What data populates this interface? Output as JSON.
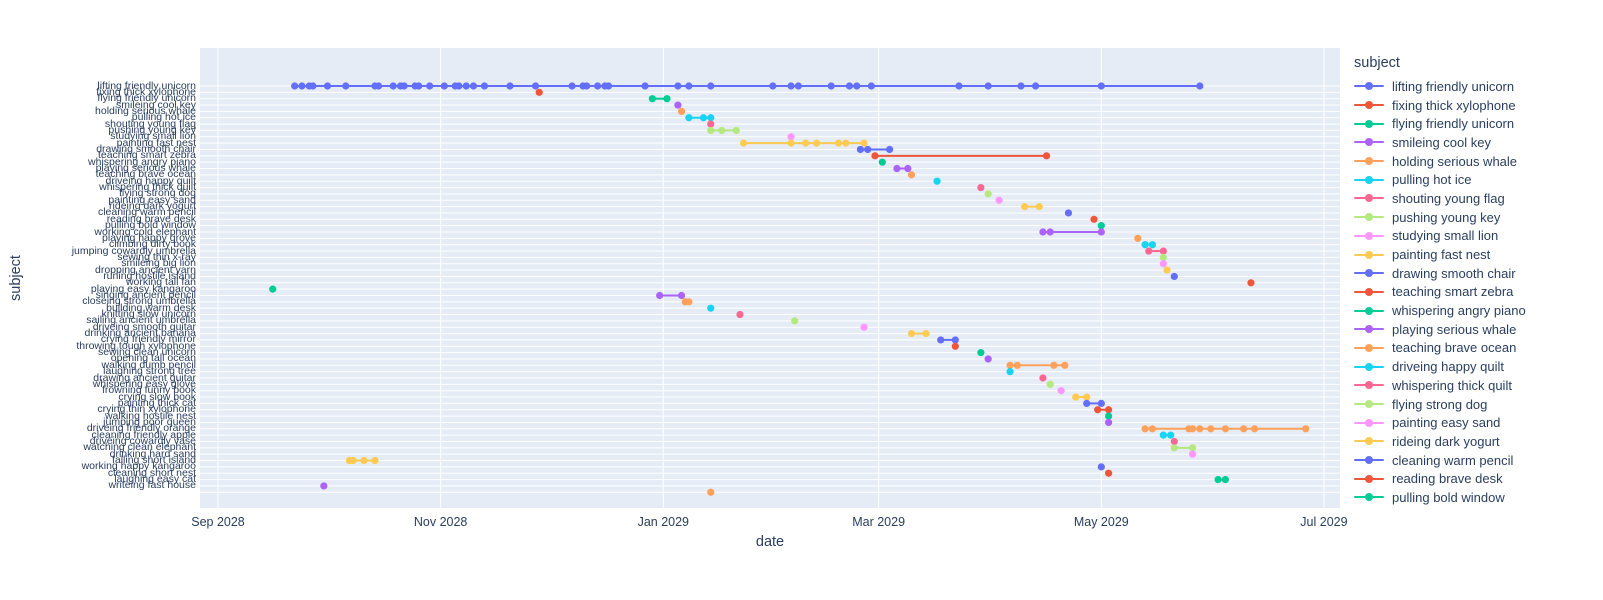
{
  "chart_data": {
    "type": "scatter",
    "mode": "lines+markers",
    "title": "",
    "xlabel": "date",
    "ylabel": "subject",
    "legend_title": "subject",
    "grid": true,
    "legend_position": "right",
    "legend_visible_count": 23,
    "plot_bg": "#E5ECF6",
    "grid_color": "#FFFFFF",
    "text_color": "#2A3F5F",
    "x_ticks": [
      "Sep 2028",
      "Nov 2028",
      "Jan 2029",
      "Mar 2029",
      "May 2029",
      "Jul 2029"
    ],
    "x_tick_dates": [
      "2028-09-01",
      "2028-11-01",
      "2029-01-01",
      "2029-03-01",
      "2029-05-01",
      "2029-07-01"
    ],
    "x_range": [
      "2028-08-27",
      "2029-07-05"
    ],
    "palette": [
      "#636EFA",
      "#EF553B",
      "#00CC96",
      "#AB63FA",
      "#FFA15A",
      "#19D3F3",
      "#FF6692",
      "#B6E880",
      "#FF97FF",
      "#FECB52"
    ],
    "series": [
      {
        "name": "lifting friendly unicorn",
        "color": "#636EFA",
        "dates": [
          "2028-09-22",
          "2028-09-24",
          "2028-09-26",
          "2028-09-27",
          "2028-10-01",
          "2028-10-06",
          "2028-10-14",
          "2028-10-15",
          "2028-10-19",
          "2028-10-21",
          "2028-10-22",
          "2028-10-25",
          "2028-10-26",
          "2028-10-29",
          "2028-11-02",
          "2028-11-05",
          "2028-11-06",
          "2028-11-08",
          "2028-11-10",
          "2028-11-13",
          "2028-11-20",
          "2028-11-27",
          "2028-12-07",
          "2028-12-10",
          "2028-12-11",
          "2028-12-14",
          "2028-12-16",
          "2028-12-17",
          "2028-12-27",
          "2029-01-05",
          "2029-01-08",
          "2029-01-14",
          "2029-01-31",
          "2029-02-05",
          "2029-02-07",
          "2029-02-16",
          "2029-02-21",
          "2029-02-23",
          "2029-02-27",
          "2029-03-23",
          "2029-03-31",
          "2029-04-09",
          "2029-04-13",
          "2029-05-01",
          "2029-05-28"
        ]
      },
      {
        "name": "fixing thick xylophone",
        "color": "#EF553B",
        "dates": [
          "2028-11-28"
        ]
      },
      {
        "name": "flying friendly unicorn",
        "color": "#00CC96",
        "dates": [
          "2028-12-29",
          "2029-01-02"
        ]
      },
      {
        "name": "smileing cool key",
        "color": "#AB63FA",
        "dates": [
          "2029-01-05"
        ]
      },
      {
        "name": "holding serious whale",
        "color": "#FFA15A",
        "dates": [
          "2029-01-06"
        ]
      },
      {
        "name": "pulling hot ice",
        "color": "#19D3F3",
        "dates": [
          "2029-01-08",
          "2029-01-12",
          "2029-01-14"
        ]
      },
      {
        "name": "shouting young flag",
        "color": "#FF6692",
        "dates": [
          "2029-01-14"
        ]
      },
      {
        "name": "pushing young key",
        "color": "#B6E880",
        "dates": [
          "2029-01-14",
          "2029-01-17",
          "2029-01-21"
        ]
      },
      {
        "name": "studying small lion",
        "color": "#FF97FF",
        "dates": [
          "2029-02-05"
        ]
      },
      {
        "name": "painting fast nest",
        "color": "#FECB52",
        "dates": [
          "2029-01-23",
          "2029-02-05",
          "2029-02-09",
          "2029-02-12",
          "2029-02-18",
          "2029-02-20",
          "2029-02-25"
        ]
      },
      {
        "name": "drawing smooth chair",
        "color": "#636EFA",
        "dates": [
          "2029-02-24",
          "2029-02-26",
          "2029-03-04"
        ]
      },
      {
        "name": "teaching smart zebra",
        "color": "#EF553B",
        "dates": [
          "2029-02-28",
          "2029-04-16"
        ]
      },
      {
        "name": "whispering angry piano",
        "color": "#00CC96",
        "dates": [
          "2029-03-02"
        ]
      },
      {
        "name": "playing serious whale",
        "color": "#AB63FA",
        "dates": [
          "2029-03-06",
          "2029-03-09"
        ]
      },
      {
        "name": "teaching brave ocean",
        "color": "#FFA15A",
        "dates": [
          "2029-03-10"
        ]
      },
      {
        "name": "driveing happy quilt",
        "color": "#19D3F3",
        "dates": [
          "2029-03-17"
        ]
      },
      {
        "name": "whispering thick quilt",
        "color": "#FF6692",
        "dates": [
          "2029-03-29"
        ]
      },
      {
        "name": "flying strong dog",
        "color": "#B6E880",
        "dates": [
          "2029-03-31"
        ]
      },
      {
        "name": "painting easy sand",
        "color": "#FF97FF",
        "dates": [
          "2029-04-03"
        ]
      },
      {
        "name": "rideing dark yogurt",
        "color": "#FECB52",
        "dates": [
          "2029-04-10",
          "2029-04-14"
        ]
      },
      {
        "name": "cleaning warm pencil",
        "color": "#636EFA",
        "dates": [
          "2029-04-22"
        ]
      },
      {
        "name": "reading brave desk",
        "color": "#EF553B",
        "dates": [
          "2029-04-29"
        ]
      },
      {
        "name": "pulling bold window",
        "color": "#00CC96",
        "dates": [
          "2029-05-01"
        ]
      },
      {
        "name": "working cold elephant",
        "color": "#AB63FA",
        "dates": [
          "2029-04-15",
          "2029-04-17",
          "2029-05-01"
        ]
      },
      {
        "name": "playing happy grove",
        "color": "#FFA15A",
        "dates": [
          "2029-05-11"
        ]
      },
      {
        "name": "climbing dirty book",
        "color": "#19D3F3",
        "dates": [
          "2029-05-13",
          "2029-05-15"
        ]
      },
      {
        "name": "jumping cowardly umbrella",
        "color": "#FF6692",
        "dates": [
          "2029-05-14",
          "2029-05-18"
        ]
      },
      {
        "name": "sewing thin x-ray",
        "color": "#B6E880",
        "dates": [
          "2029-05-18"
        ]
      },
      {
        "name": "smileing big lion",
        "color": "#FF97FF",
        "dates": [
          "2029-05-18"
        ]
      },
      {
        "name": "dropping ancient yarn",
        "color": "#FECB52",
        "dates": [
          "2029-05-19"
        ]
      },
      {
        "name": "runing hostile island",
        "color": "#636EFA",
        "dates": [
          "2029-05-21"
        ]
      },
      {
        "name": "working tall fan",
        "color": "#EF553B",
        "dates": [
          "2029-06-11"
        ]
      },
      {
        "name": "playing easy kangaroo",
        "color": "#00CC96",
        "dates": [
          "2028-09-16"
        ]
      },
      {
        "name": "singing ancient pencil",
        "color": "#AB63FA",
        "dates": [
          "2028-12-31",
          "2029-01-06"
        ]
      },
      {
        "name": "closeing strong umbrella",
        "color": "#FFA15A",
        "dates": [
          "2029-01-07",
          "2029-01-08"
        ]
      },
      {
        "name": "building warm desk",
        "color": "#19D3F3",
        "dates": [
          "2029-01-14"
        ]
      },
      {
        "name": "knitting slow unicorn",
        "color": "#FF6692",
        "dates": [
          "2029-01-22"
        ]
      },
      {
        "name": "sailing ancient umbrella",
        "color": "#B6E880",
        "dates": [
          "2029-02-06"
        ]
      },
      {
        "name": "driveing smooth guitar",
        "color": "#FF97FF",
        "dates": [
          "2029-02-25"
        ]
      },
      {
        "name": "drinking ancient banana",
        "color": "#FECB52",
        "dates": [
          "2029-03-10",
          "2029-03-14"
        ]
      },
      {
        "name": "crying friendly mirror",
        "color": "#636EFA",
        "dates": [
          "2029-03-18",
          "2029-03-22"
        ]
      },
      {
        "name": "throwing tough xylophone",
        "color": "#EF553B",
        "dates": [
          "2029-03-22"
        ]
      },
      {
        "name": "sewing clean unicorn",
        "color": "#00CC96",
        "dates": [
          "2029-03-29"
        ]
      },
      {
        "name": "opening tall ocean",
        "color": "#AB63FA",
        "dates": [
          "2029-03-31"
        ]
      },
      {
        "name": "walking dumb pencil",
        "color": "#FFA15A",
        "dates": [
          "2029-04-06",
          "2029-04-08",
          "2029-04-18",
          "2029-04-21"
        ]
      },
      {
        "name": "laughing strong tree",
        "color": "#19D3F3",
        "dates": [
          "2029-04-06"
        ]
      },
      {
        "name": "drawing ancient guitar",
        "color": "#FF6692",
        "dates": [
          "2029-04-15"
        ]
      },
      {
        "name": "whispering easy glove",
        "color": "#B6E880",
        "dates": [
          "2029-04-17"
        ]
      },
      {
        "name": "frowning funny book",
        "color": "#FF97FF",
        "dates": [
          "2029-04-20"
        ]
      },
      {
        "name": "crying slow book",
        "color": "#FECB52",
        "dates": [
          "2029-04-24",
          "2029-04-27"
        ]
      },
      {
        "name": "painting thick cat",
        "color": "#636EFA",
        "dates": [
          "2029-04-27",
          "2029-05-01"
        ]
      },
      {
        "name": "crying thin xylophone",
        "color": "#EF553B",
        "dates": [
          "2029-04-30",
          "2029-05-03"
        ]
      },
      {
        "name": "walking hostile nest",
        "color": "#00CC96",
        "dates": [
          "2029-05-03"
        ]
      },
      {
        "name": "jumping poor queen",
        "color": "#AB63FA",
        "dates": [
          "2029-05-03"
        ]
      },
      {
        "name": "driveing friendly orange",
        "color": "#FFA15A",
        "dates": [
          "2029-05-13",
          "2029-05-15",
          "2029-05-25",
          "2029-05-26",
          "2029-05-28",
          "2029-05-31",
          "2029-06-04",
          "2029-06-09",
          "2029-06-12",
          "2029-06-26"
        ]
      },
      {
        "name": "cleaning friendly apple",
        "color": "#19D3F3",
        "dates": [
          "2029-05-18",
          "2029-05-20"
        ]
      },
      {
        "name": "driveing cowardly vase",
        "color": "#FF6692",
        "dates": [
          "2029-05-21"
        ]
      },
      {
        "name": "watching clean elephant",
        "color": "#B6E880",
        "dates": [
          "2029-05-21",
          "2029-05-26"
        ]
      },
      {
        "name": "drinking hard sand",
        "color": "#FF97FF",
        "dates": [
          "2029-05-26"
        ]
      },
      {
        "name": "falling short island",
        "color": "#FECB52",
        "dates": [
          "2028-10-07",
          "2028-10-08",
          "2028-10-11",
          "2028-10-14"
        ]
      },
      {
        "name": "working happy kangaroo",
        "color": "#636EFA",
        "dates": [
          "2029-05-01"
        ]
      },
      {
        "name": "cleaning short nest",
        "color": "#EF553B",
        "dates": [
          "2029-05-03"
        ]
      },
      {
        "name": "laughing easy cat",
        "color": "#00CC96",
        "dates": [
          "2029-06-02",
          "2029-06-04"
        ]
      },
      {
        "name": "writeing fast house",
        "color": "#AB63FA",
        "dates": [
          "2028-09-30"
        ]
      },
      {
        "name": "",
        "color": "#FFA15A",
        "dates": [
          "2029-01-14"
        ]
      }
    ]
  }
}
